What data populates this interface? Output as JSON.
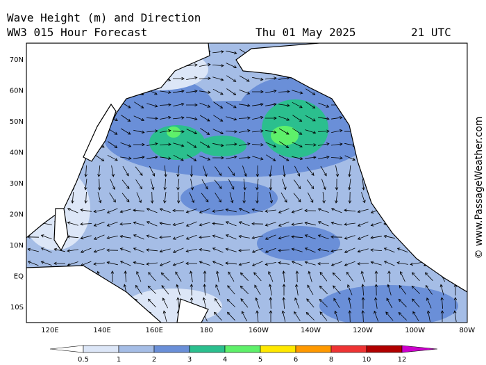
{
  "header": {
    "title": "Wave Height (m) and Direction",
    "model": "WW3 015 Hour Forecast",
    "date": "Thu 01 May 2025",
    "time": "21 UTC"
  },
  "map": {
    "lat_labels": [
      "70N",
      "60N",
      "50N",
      "40N",
      "30N",
      "20N",
      "10N",
      "EQ",
      "10S"
    ],
    "lon_labels": [
      "120E",
      "140E",
      "160E",
      "180",
      "160W",
      "140W",
      "120W",
      "100W",
      "80W"
    ]
  },
  "legend": {
    "ticks": [
      0.5,
      1,
      2,
      3,
      4,
      5,
      6,
      8,
      10,
      12
    ],
    "colors": [
      "#ffffff",
      "#dce6f7",
      "#a5bde6",
      "#6a8fd8",
      "#2bbf8e",
      "#5ef06a",
      "#ffe800",
      "#ff9900",
      "#ee3333",
      "#b00000",
      "#cc00cc"
    ]
  },
  "watermark": "© www.PassageWeather.com"
}
